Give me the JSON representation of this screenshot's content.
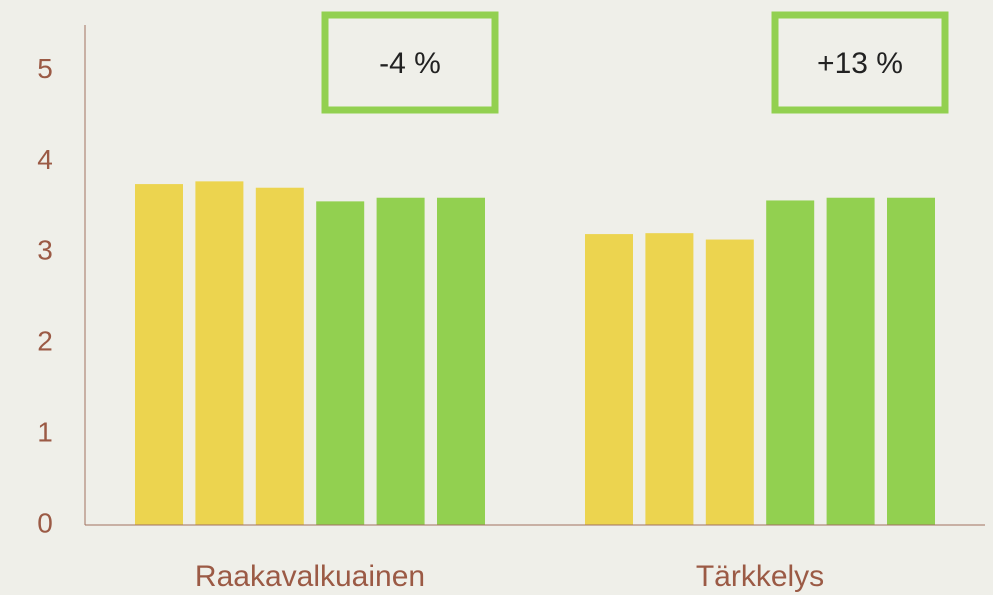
{
  "chart_data": {
    "type": "bar",
    "categories": [
      "Raakavalkuainen",
      "Tärkkelys"
    ],
    "series": [
      {
        "color": "#ecd44f",
        "values": [
          3.75,
          3.2
        ]
      },
      {
        "color": "#ecd44f",
        "values": [
          3.78,
          3.21
        ]
      },
      {
        "color": "#ecd44f",
        "values": [
          3.71,
          3.14
        ]
      },
      {
        "color": "#92d050",
        "values": [
          3.56,
          3.57
        ]
      },
      {
        "color": "#92d050",
        "values": [
          3.6,
          3.6
        ]
      },
      {
        "color": "#92d050",
        "values": [
          3.6,
          3.6
        ]
      }
    ],
    "annotations": [
      "-4 %",
      "+13 %"
    ],
    "annotation_color": "#92d050",
    "ylim": [
      0,
      5.5
    ],
    "yticks": [
      0,
      1,
      2,
      3,
      4,
      5
    ],
    "grid": false
  }
}
